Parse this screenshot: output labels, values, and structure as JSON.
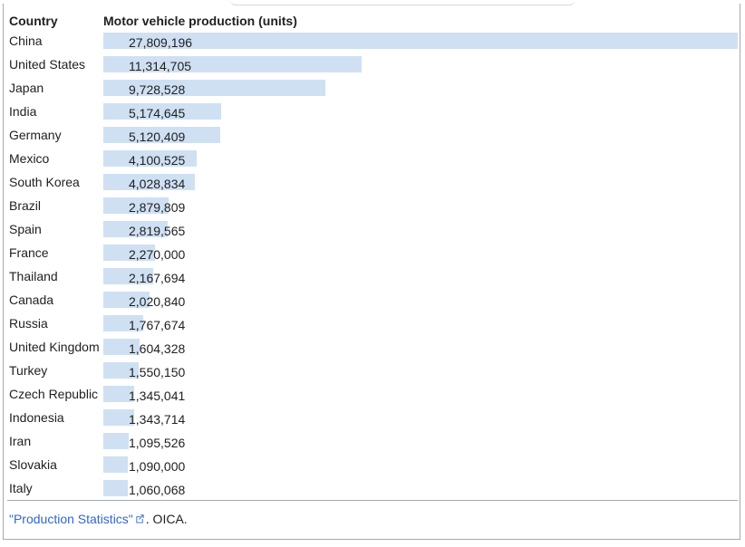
{
  "chart_data": {
    "type": "bar",
    "orientation": "horizontal",
    "headers": {
      "country": "Country",
      "value": "Motor vehicle production (units)"
    },
    "categories": [
      "China",
      "United States",
      "Japan",
      "India",
      "Germany",
      "Mexico",
      "South Korea",
      "Brazil",
      "Spain",
      "France",
      "Thailand",
      "Canada",
      "Russia",
      "United Kingdom",
      "Turkey",
      "Czech Republic",
      "Indonesia",
      "Iran",
      "Slovakia",
      "Italy"
    ],
    "values": [
      27809196,
      11314705,
      9728528,
      5174645,
      5120409,
      4100525,
      4028834,
      2879809,
      2819565,
      2270000,
      2167694,
      2020840,
      1767674,
      1604328,
      1550150,
      1345041,
      1343714,
      1095526,
      1090000,
      1060068
    ],
    "labels": [
      "27,809,196",
      "11,314,705",
      "9,728,528",
      "5,174,645",
      "5,120,409",
      "4,100,525",
      "4,028,834",
      "2,879,809",
      "2,819,565",
      "2,270,000",
      "2,167,694",
      "2,020,840",
      "1,767,674",
      "1,604,328",
      "1,550,150",
      "1,345,041",
      "1,343,714",
      "1,095,526",
      "1,090,000",
      "1,060,068"
    ],
    "xlim": [
      0,
      27809196
    ],
    "bar_color": "#cfe0f3"
  },
  "footer": {
    "link_label": "\"Production Statistics\"",
    "link_icon": "external-link-icon",
    "rest": ". OICA."
  }
}
